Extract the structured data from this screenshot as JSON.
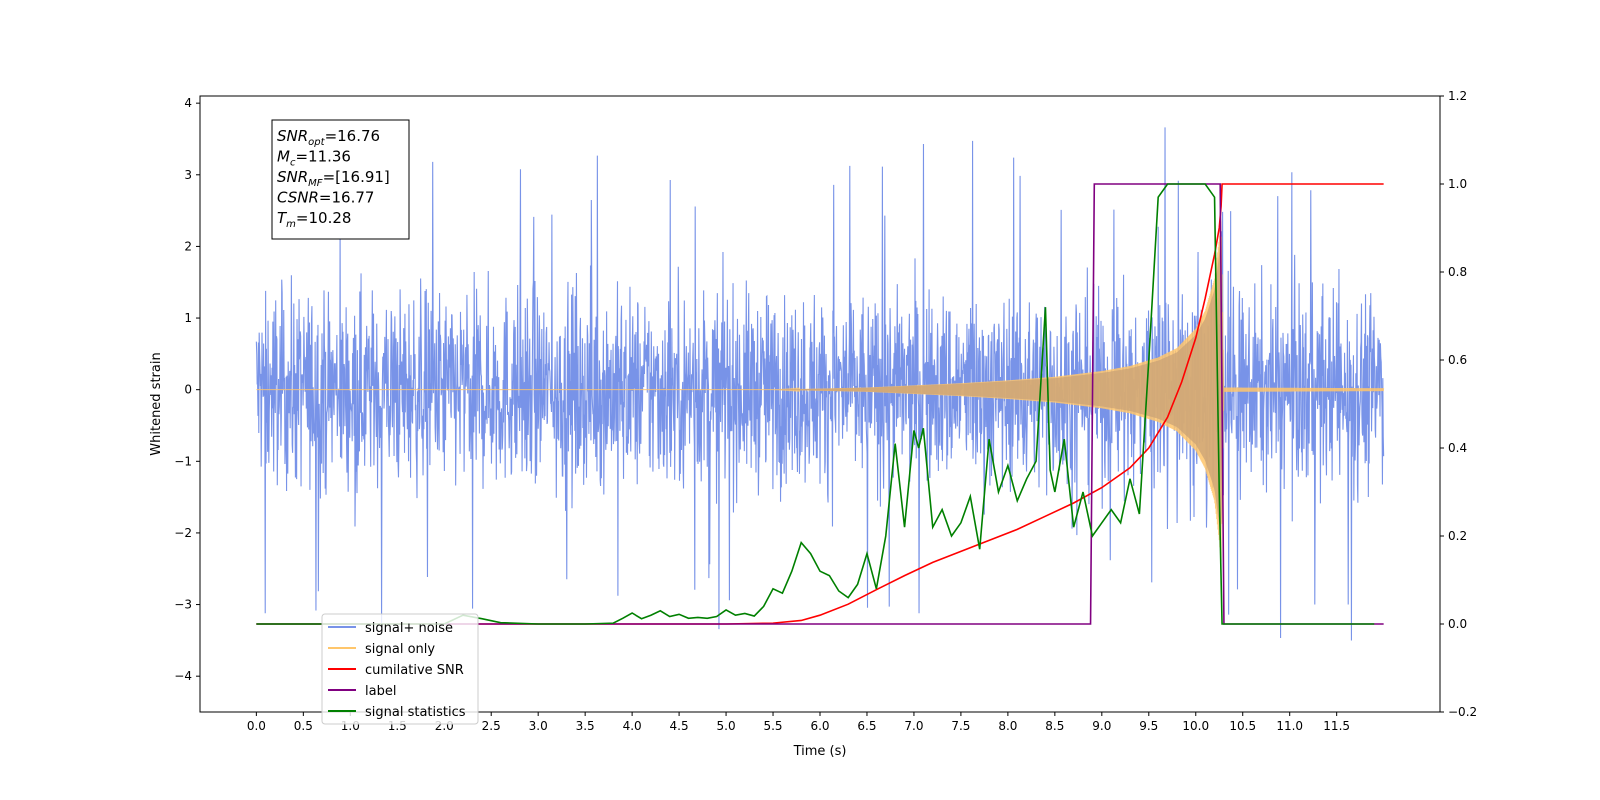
{
  "chart_data": {
    "type": "line",
    "title": "",
    "xlabel": "Time (s)",
    "ylabel": "Whitened strain",
    "xlim": [
      -0.6,
      12.6
    ],
    "ylim": [
      -4.5,
      4.1
    ],
    "y2lim": [
      -0.2,
      1.2
    ],
    "grid": false,
    "legend_loc": "lower-left",
    "x_ticks": [
      "0.0",
      "0.5",
      "1.0",
      "1.5",
      "2.0",
      "2.5",
      "3.0",
      "3.5",
      "4.0",
      "4.5",
      "5.0",
      "5.5",
      "6.0",
      "6.5",
      "7.0",
      "7.5",
      "8.0",
      "8.5",
      "9.0",
      "9.5",
      "10.0",
      "10.5",
      "11.0",
      "11.5"
    ],
    "y_ticks": [
      "4",
      "3",
      "2",
      "1",
      "0",
      "−1",
      "−2",
      "−3",
      "−4"
    ],
    "y2_ticks": [
      "1.2",
      "1.0",
      "0.8",
      "0.6",
      "0.4",
      "0.2",
      "0.0",
      "−0.2"
    ],
    "info_box": [
      {
        "sym": "SNR",
        "sub": "opt",
        "val": "=16.76"
      },
      {
        "sym": "M",
        "sub": "c",
        "val": "=11.36"
      },
      {
        "sym": "SNR",
        "sub": "MF",
        "val": "=[16.91]"
      },
      {
        "sym": "CSNR",
        "sub": "",
        "val": "=16.77"
      },
      {
        "sym": "T",
        "sub": "m",
        "val": "=10.28"
      }
    ],
    "noise_range": {
      "t_start": 0.0,
      "t_end": 12.0,
      "amplitude_typ": 1.2,
      "max": 3.7,
      "min": -4.1
    },
    "signal_envelope": {
      "t": [
        0,
        5.5,
        6.5,
        7.5,
        8.0,
        8.5,
        9.0,
        9.3,
        9.6,
        9.8,
        10.0,
        10.1,
        10.2,
        10.25,
        10.27,
        10.3,
        12.0
      ],
      "amp": [
        0,
        0.0,
        0.03,
        0.09,
        0.13,
        0.18,
        0.26,
        0.33,
        0.45,
        0.58,
        0.85,
        1.1,
        1.55,
        2.1,
        2.4,
        0.03,
        0.02
      ]
    },
    "series": [
      {
        "name": "signal+ noise",
        "color": "#7893e8"
      },
      {
        "name": "signal only",
        "color": "#ffc66b"
      },
      {
        "name": "cumilative SNR",
        "color": "#ff0000",
        "axis": "right",
        "x": [
          0,
          5.0,
          5.5,
          5.8,
          6.0,
          6.3,
          6.6,
          6.9,
          7.2,
          7.5,
          7.8,
          8.1,
          8.4,
          8.7,
          9.0,
          9.3,
          9.5,
          9.7,
          9.85,
          10.0,
          10.1,
          10.2,
          10.25,
          10.27,
          10.28,
          11.0,
          12.0
        ],
        "y": [
          0,
          0.0,
          0.002,
          0.008,
          0.02,
          0.045,
          0.078,
          0.11,
          0.14,
          0.165,
          0.19,
          0.215,
          0.245,
          0.275,
          0.31,
          0.355,
          0.4,
          0.47,
          0.55,
          0.65,
          0.74,
          0.84,
          0.9,
          0.95,
          1.0,
          1.0,
          1.0
        ]
      },
      {
        "name": "label",
        "color": "#800080",
        "axis": "right",
        "x": [
          0,
          8.88,
          8.92,
          10.26,
          10.3,
          12.0
        ],
        "y": [
          0,
          0,
          1,
          1,
          0,
          0
        ]
      },
      {
        "name": "signal statistics",
        "color": "#008000",
        "axis": "right",
        "x": [
          0,
          1.5,
          2.0,
          2.2,
          2.4,
          2.6,
          3.0,
          3.5,
          3.8,
          3.9,
          4.0,
          4.1,
          4.2,
          4.3,
          4.4,
          4.5,
          4.6,
          4.7,
          4.8,
          4.9,
          5.0,
          5.1,
          5.2,
          5.3,
          5.4,
          5.5,
          5.6,
          5.7,
          5.8,
          5.9,
          6.0,
          6.1,
          6.2,
          6.3,
          6.4,
          6.5,
          6.6,
          6.7,
          6.8,
          6.9,
          7.0,
          7.05,
          7.1,
          7.2,
          7.3,
          7.4,
          7.5,
          7.6,
          7.7,
          7.8,
          7.9,
          8.0,
          8.1,
          8.2,
          8.3,
          8.4,
          8.45,
          8.5,
          8.6,
          8.7,
          8.8,
          8.9,
          9.0,
          9.1,
          9.2,
          9.3,
          9.4,
          9.5,
          9.6,
          9.7,
          9.8,
          9.9,
          10.0,
          10.1,
          10.2,
          10.25,
          10.28,
          10.3,
          11.0,
          11.9
        ],
        "y": [
          0,
          0,
          0.0,
          0.02,
          0.012,
          0.003,
          0.0,
          0.0,
          0.002,
          0.013,
          0.025,
          0.012,
          0.02,
          0.03,
          0.017,
          0.022,
          0.013,
          0.015,
          0.013,
          0.017,
          0.032,
          0.02,
          0.024,
          0.018,
          0.04,
          0.08,
          0.07,
          0.12,
          0.185,
          0.16,
          0.12,
          0.11,
          0.075,
          0.06,
          0.09,
          0.16,
          0.08,
          0.2,
          0.41,
          0.22,
          0.44,
          0.4,
          0.445,
          0.22,
          0.26,
          0.2,
          0.23,
          0.29,
          0.17,
          0.42,
          0.3,
          0.36,
          0.28,
          0.33,
          0.37,
          0.72,
          0.35,
          0.3,
          0.42,
          0.22,
          0.3,
          0.2,
          0.23,
          0.26,
          0.23,
          0.33,
          0.25,
          0.6,
          0.97,
          1.0,
          1.0,
          1.0,
          1.0,
          1.0,
          0.97,
          0.3,
          0.0,
          0.0,
          0.0,
          0.0
        ]
      }
    ],
    "legend": [
      {
        "label": "signal+ noise",
        "color": "#7893e8"
      },
      {
        "label": "signal only",
        "color": "#ffc66b"
      },
      {
        "label": "cumilative SNR",
        "color": "#ff0000"
      },
      {
        "label": "label",
        "color": "#800080"
      },
      {
        "label": "signal statistics",
        "color": "#008000"
      }
    ]
  }
}
